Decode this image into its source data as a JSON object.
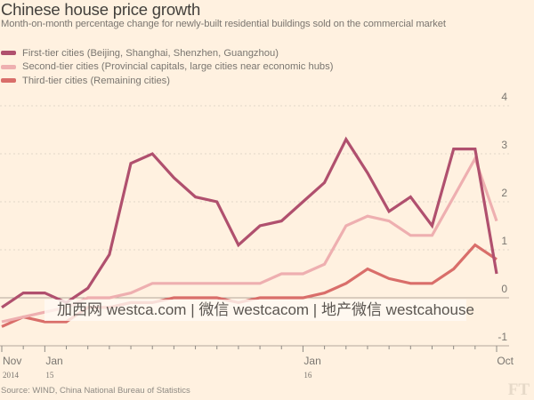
{
  "chart_data": {
    "type": "line",
    "title": "Chinese house price growth",
    "subtitle": "Month-on-month percentage change for newly-built residential buildings sold on the commercial market",
    "xlabel": "",
    "ylabel": "",
    "ylim": [
      -1,
      4
    ],
    "yticks": [
      "4",
      "3",
      "2",
      "1",
      "0",
      "-1"
    ],
    "ytick_values": [
      4,
      3,
      2,
      1,
      0,
      -1
    ],
    "grid": true,
    "legend_position": "top-left",
    "x": [
      "Nov 2014",
      "Dec 2014",
      "Jan 2015",
      "Feb 2015",
      "Mar 2015",
      "Apr 2015",
      "May 2015",
      "Jun 2015",
      "Jul 2015",
      "Aug 2015",
      "Sep 2015",
      "Oct 2015",
      "Nov 2015",
      "Dec 2015",
      "Jan 2016",
      "Feb 2016",
      "Mar 2016",
      "Apr 2016",
      "May 2016",
      "Jun 2016",
      "Jul 2016",
      "Aug 2016",
      "Sep 2016",
      "Oct 2016"
    ],
    "xtick_labels": [
      {
        "index": 0,
        "label": "Nov",
        "sublabel": "2014"
      },
      {
        "index": 2,
        "label": "Jan",
        "sublabel": "15"
      },
      {
        "index": 14,
        "label": "Jan",
        "sublabel": "16"
      },
      {
        "index": 23,
        "label": "Oct",
        "sublabel": ""
      }
    ],
    "series": [
      {
        "name": "First-tier cities (Beijing, Shanghai, Shenzhen, Guangzhou)",
        "color": "#b0506e",
        "values": [
          -0.2,
          0.1,
          0.1,
          -0.1,
          0.2,
          0.9,
          2.8,
          3.0,
          2.5,
          2.1,
          2.0,
          1.1,
          1.5,
          1.6,
          2.0,
          2.4,
          3.3,
          2.6,
          1.8,
          2.1,
          1.5,
          3.1,
          3.1,
          0.5
        ]
      },
      {
        "name": "Second-tier cities (Provincial capitals, large cities near economic hubs)",
        "color": "#eeafb0",
        "values": [
          -0.5,
          -0.4,
          -0.3,
          -0.2,
          0.0,
          0.0,
          0.1,
          0.3,
          0.3,
          0.3,
          0.3,
          0.3,
          0.3,
          0.5,
          0.5,
          0.7,
          1.5,
          1.7,
          1.6,
          1.3,
          1.3,
          2.1,
          2.9,
          1.6
        ]
      },
      {
        "name": "Third-tier cities (Remaining cities)",
        "color": "#d96e6a",
        "values": [
          -0.6,
          -0.4,
          -0.5,
          -0.5,
          -0.2,
          -0.2,
          -0.1,
          -0.1,
          0.0,
          0.0,
          0.0,
          -0.1,
          0.0,
          0.0,
          0.0,
          0.1,
          0.3,
          0.6,
          0.4,
          0.3,
          0.3,
          0.6,
          1.1,
          0.8
        ]
      }
    ],
    "source": "Source: WIND, China National Bureau of Statistics"
  },
  "watermark": "加西网 westca.com | 微信 westcacom | 地产微信 westcahouse",
  "logo": "FT"
}
